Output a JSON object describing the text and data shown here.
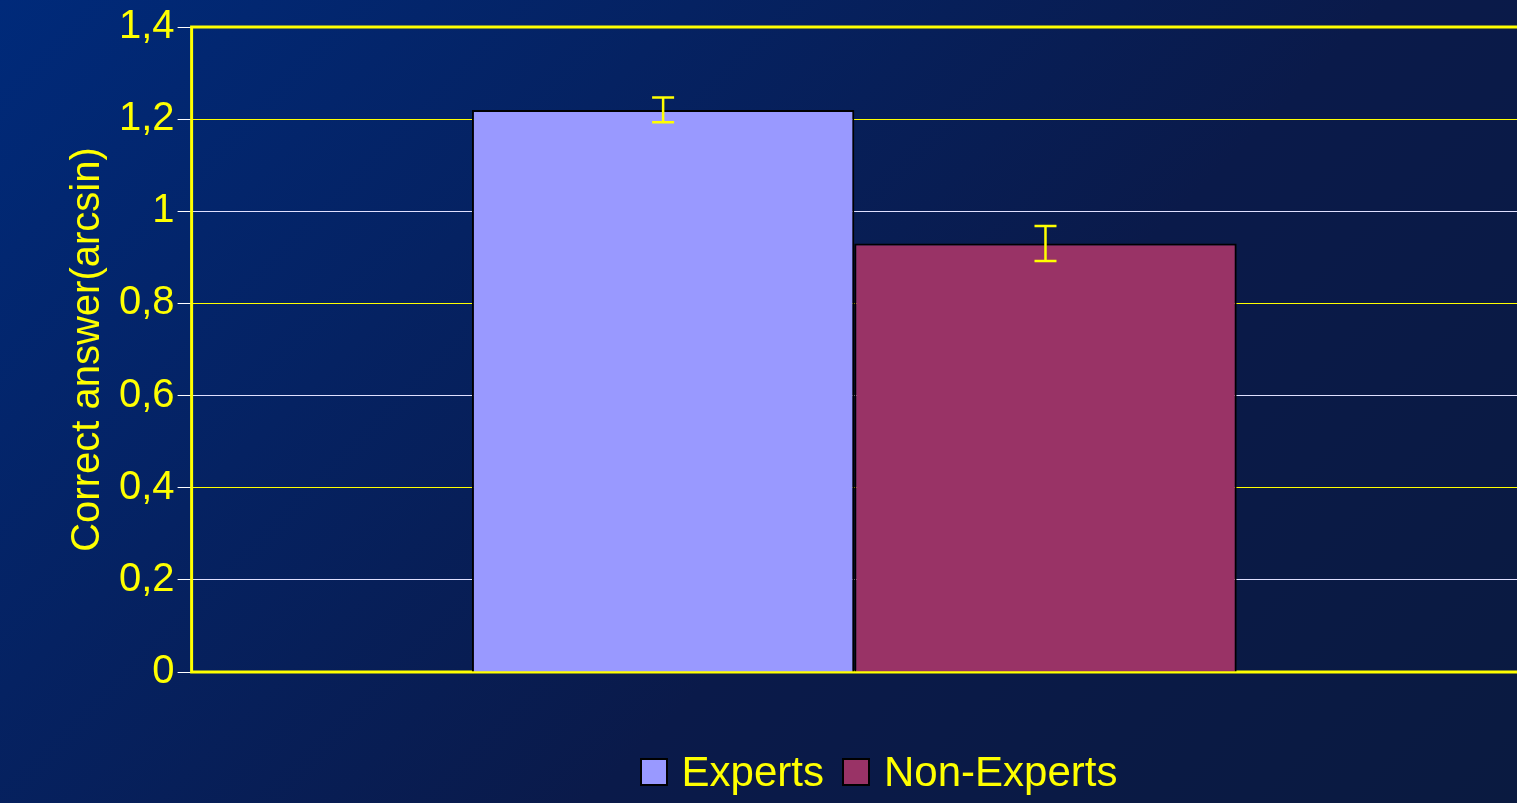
{
  "chart_data": {
    "type": "bar",
    "ylabel": "Correct answer(arcsin)",
    "categories": [
      null
    ],
    "series": [
      {
        "name": "Experts",
        "color": "#9999ff",
        "values": [
          1.22
        ],
        "errors": [
          0.027
        ]
      },
      {
        "name": "Non-Experts",
        "color": "#993366",
        "values": [
          0.93
        ],
        "errors": [
          0.038
        ]
      }
    ],
    "ylim": [
      0,
      1.4
    ],
    "yticks": [
      0,
      {
        "value": 0.2,
        "label": "0,2"
      },
      {
        "value": 0.4,
        "label": "0,4"
      },
      {
        "value": 0.6,
        "label": "0,6"
      },
      {
        "value": 0.8,
        "label": "0,8"
      },
      1,
      {
        "value": 1.2,
        "label": "1,2"
      },
      {
        "value": 1.4,
        "label": "1,4"
      }
    ],
    "grid": "y",
    "legend": "bottom"
  }
}
